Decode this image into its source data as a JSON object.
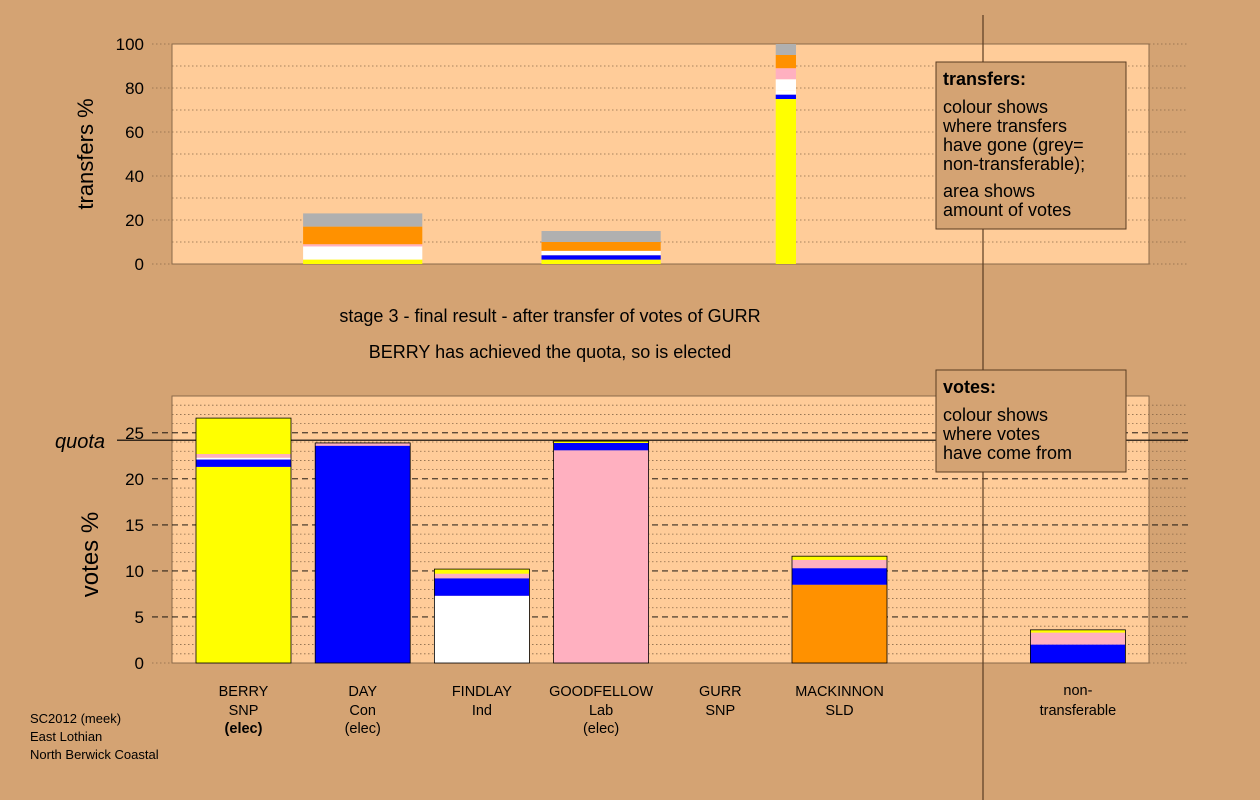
{
  "colors": {
    "background": "#d4a373",
    "plot_area": "#ffcc99",
    "SNP": "#ffff00",
    "Con": "#0000ff",
    "Ind": "#ffffff",
    "Lab": "#ffb0c0",
    "SLD": "#ff9100",
    "non_transferable": "#b0b0b0"
  },
  "captions": {
    "stage": "stage 3 - final result - after transfer of votes of GURR",
    "result": "BERRY has achieved the quota, so is elected"
  },
  "credits": {
    "line1": "SC2012 (meek)",
    "line2": "East Lothian",
    "line3": "North Berwick Coastal"
  },
  "chart_data": [
    {
      "type": "bar",
      "stacked": true,
      "ylabel": "transfers %",
      "ylim": [
        0,
        100
      ],
      "yticks": [
        0,
        20,
        40,
        60,
        80,
        100
      ],
      "legend": {
        "title": "transfers:",
        "lines": [
          "colour shows",
          "where transfers",
          "have gone (grey=",
          "non-transferable);"
        ],
        "lines2": [
          "area shows",
          "amount of votes"
        ]
      },
      "bars": [
        {
          "slot": 1,
          "width_fraction": 1.0,
          "segments": [
            {
              "value": 2,
              "color": "#ffff00"
            },
            {
              "value": 6,
              "color": "#ffffff"
            },
            {
              "value": 1,
              "color": "#ffb0c0"
            },
            {
              "value": 8,
              "color": "#ff9100"
            },
            {
              "value": 6,
              "color": "#b0b0b0"
            }
          ]
        },
        {
          "slot": 3,
          "width_fraction": 1.0,
          "segments": [
            {
              "value": 2,
              "color": "#ffff00"
            },
            {
              "value": 2,
              "color": "#0000ff"
            },
            {
              "value": 2,
              "color": "#ffffff"
            },
            {
              "value": 4,
              "color": "#ff9100"
            },
            {
              "value": 5,
              "color": "#b0b0b0"
            }
          ]
        },
        {
          "slot": 4.55,
          "width_fraction": 0.17,
          "segments": [
            {
              "value": 75,
              "color": "#ffff00"
            },
            {
              "value": 2,
              "color": "#0000ff"
            },
            {
              "value": 2,
              "color": "#ffffff"
            },
            {
              "value": 5,
              "color": "#ffffff"
            },
            {
              "value": 5,
              "color": "#ffb0c0"
            },
            {
              "value": 6,
              "color": "#ff9100"
            },
            {
              "value": 5,
              "color": "#b0b0b0"
            }
          ]
        }
      ]
    },
    {
      "type": "bar",
      "stacked": true,
      "ylabel": "votes %",
      "ylim": [
        0,
        29
      ],
      "yticks": [
        0,
        5,
        10,
        15,
        20,
        25
      ],
      "quota": {
        "value": 24.2,
        "label": "quota"
      },
      "legend": {
        "title": "votes:",
        "lines": [
          "colour shows",
          "where votes",
          "have come from"
        ]
      },
      "categories": [
        {
          "name": "BERRY",
          "party": "SNP",
          "status": "(elec)",
          "bold_status": true
        },
        {
          "name": "DAY",
          "party": "Con",
          "status": "(elec)",
          "bold_status": false
        },
        {
          "name": "FINDLAY",
          "party": "Ind",
          "status": "",
          "bold_status": false
        },
        {
          "name": "GOODFELLOW",
          "party": "Lab",
          "status": "(elec)",
          "bold_status": false
        },
        {
          "name": "GURR",
          "party": "SNP",
          "status": "",
          "bold_status": false
        },
        {
          "name": "MACKINNON",
          "party": "SLD",
          "status": "",
          "bold_status": false
        }
      ],
      "nontransferable_label": [
        "non-",
        "transferable"
      ],
      "bars": [
        {
          "slot": 0,
          "segments": [
            {
              "value": 21.3,
              "color": "#ffff00"
            },
            {
              "value": 0.8,
              "color": "#0000ff"
            },
            {
              "value": 0.2,
              "color": "#ffffff"
            },
            {
              "value": 0.4,
              "color": "#ffb0c0"
            },
            {
              "value": 3.9,
              "color": "#ffff00"
            }
          ]
        },
        {
          "slot": 1,
          "segments": [
            {
              "value": 23.6,
              "color": "#0000ff"
            },
            {
              "value": 0.3,
              "color": "#ffb0c0"
            }
          ]
        },
        {
          "slot": 2,
          "segments": [
            {
              "value": 7.3,
              "color": "#ffffff"
            },
            {
              "value": 1.9,
              "color": "#0000ff"
            },
            {
              "value": 0.5,
              "color": "#ffb0c0"
            },
            {
              "value": 0.5,
              "color": "#ffff00"
            }
          ]
        },
        {
          "slot": 3,
          "segments": [
            {
              "value": 23.1,
              "color": "#ffb0c0"
            },
            {
              "value": 0.8,
              "color": "#0000ff"
            },
            {
              "value": 0.2,
              "color": "#ffff00"
            }
          ]
        },
        {
          "slot": 5,
          "segments": [
            {
              "value": 8.5,
              "color": "#ff9100"
            },
            {
              "value": 1.8,
              "color": "#0000ff"
            },
            {
              "value": 0.9,
              "color": "#ffb0c0"
            },
            {
              "value": 0.4,
              "color": "#ffff00"
            }
          ]
        },
        {
          "slot": 7,
          "segments": [
            {
              "value": 2.0,
              "color": "#0000ff"
            },
            {
              "value": 1.3,
              "color": "#ffb0c0"
            },
            {
              "value": 0.3,
              "color": "#ffff00"
            }
          ]
        }
      ]
    }
  ]
}
